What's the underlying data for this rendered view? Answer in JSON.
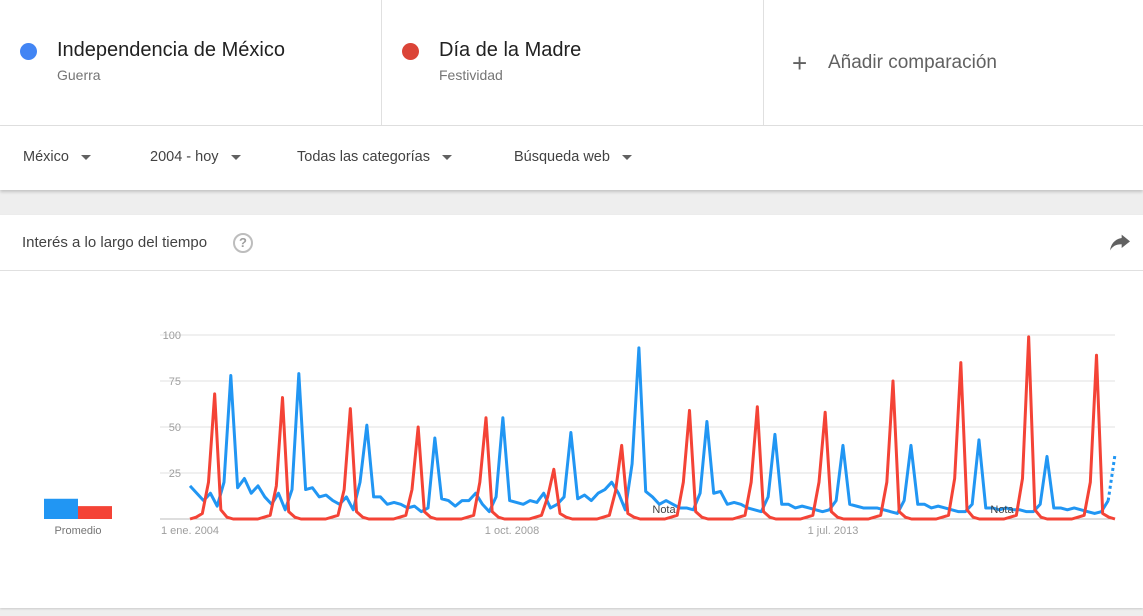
{
  "terms": [
    {
      "name": "Independencia de México",
      "sub": "Guerra",
      "color": "#4285f4"
    },
    {
      "name": "Día de la Madre",
      "sub": "Festividad",
      "color": "#db4437"
    }
  ],
  "add_comparison": {
    "label": "Añadir comparación",
    "icon": "plus-icon"
  },
  "filters": {
    "region": "México",
    "time": "2004 - hoy",
    "category": "Todas las categorías",
    "search_type": "Búsqueda web"
  },
  "card": {
    "title": "Interés a lo largo del tiempo",
    "help_icon": "question-circle-icon",
    "share_icon": "share-icon"
  },
  "chart_data": {
    "type": "line",
    "x_tick_labels": [
      "1 ene. 2004",
      "1 oct. 2008",
      "1 jul. 2013"
    ],
    "y_ticks": [
      25,
      50,
      75,
      100
    ],
    "ylim": [
      0,
      100
    ],
    "grid": true,
    "notes": [
      "Nota",
      "Nota"
    ],
    "average_label": "Promedio",
    "averages": [
      {
        "series": 0,
        "value": 11
      },
      {
        "series": 1,
        "value": 7
      }
    ],
    "series": [
      {
        "color": "#2196f3",
        "values": [
          18,
          14,
          10,
          14,
          7,
          20,
          78,
          17,
          22,
          14,
          18,
          12,
          8,
          14,
          5,
          16,
          79,
          16,
          17,
          12,
          13,
          10,
          8,
          12,
          5,
          20,
          51,
          12,
          12,
          8,
          9,
          8,
          6,
          7,
          4,
          6,
          44,
          11,
          10,
          7,
          10,
          10,
          14,
          8,
          4,
          12,
          55,
          10,
          9,
          8,
          10,
          9,
          14,
          6,
          8,
          12,
          47,
          11,
          13,
          10,
          14,
          16,
          20,
          14,
          5,
          30,
          93,
          15,
          12,
          8,
          10,
          8,
          6,
          6,
          5,
          14,
          53,
          14,
          15,
          8,
          9,
          8,
          6,
          5,
          4,
          12,
          46,
          8,
          8,
          6,
          7,
          6,
          5,
          4,
          5,
          10,
          40,
          8,
          7,
          6,
          6,
          6,
          5,
          4,
          3,
          10,
          40,
          8,
          8,
          6,
          7,
          6,
          5,
          4,
          4,
          8,
          43,
          6,
          6,
          5,
          6,
          5,
          5,
          4,
          4,
          8,
          34,
          6,
          6,
          5,
          6,
          5,
          4,
          3,
          4,
          10,
          35
        ]
      },
      {
        "color": "#f44336",
        "values": [
          0,
          1,
          3,
          20,
          68,
          5,
          1,
          0,
          0,
          0,
          0,
          0,
          1,
          2,
          18,
          66,
          4,
          1,
          0,
          0,
          0,
          0,
          0,
          1,
          2,
          16,
          60,
          4,
          1,
          0,
          0,
          0,
          0,
          0,
          1,
          2,
          16,
          50,
          4,
          1,
          0,
          0,
          0,
          0,
          0,
          1,
          2,
          20,
          55,
          4,
          1,
          0,
          0,
          0,
          0,
          0,
          1,
          2,
          12,
          27,
          3,
          1,
          0,
          0,
          0,
          0,
          0,
          1,
          2,
          15,
          40,
          3,
          1,
          0,
          0,
          0,
          0,
          0,
          1,
          2,
          20,
          59,
          4,
          1,
          0,
          0,
          0,
          0,
          0,
          1,
          2,
          20,
          61,
          4,
          1,
          0,
          0,
          0,
          0,
          0,
          1,
          2,
          20,
          58,
          4,
          1,
          0,
          0,
          0,
          0,
          0,
          1,
          2,
          20,
          75,
          4,
          1,
          0,
          0,
          0,
          0,
          0,
          1,
          2,
          22,
          85,
          5,
          1,
          0,
          0,
          0,
          0,
          0,
          1,
          2,
          22,
          99,
          5,
          1,
          0,
          0,
          0,
          0,
          0,
          1,
          2,
          20,
          89,
          3,
          1,
          0
        ]
      }
    ]
  }
}
